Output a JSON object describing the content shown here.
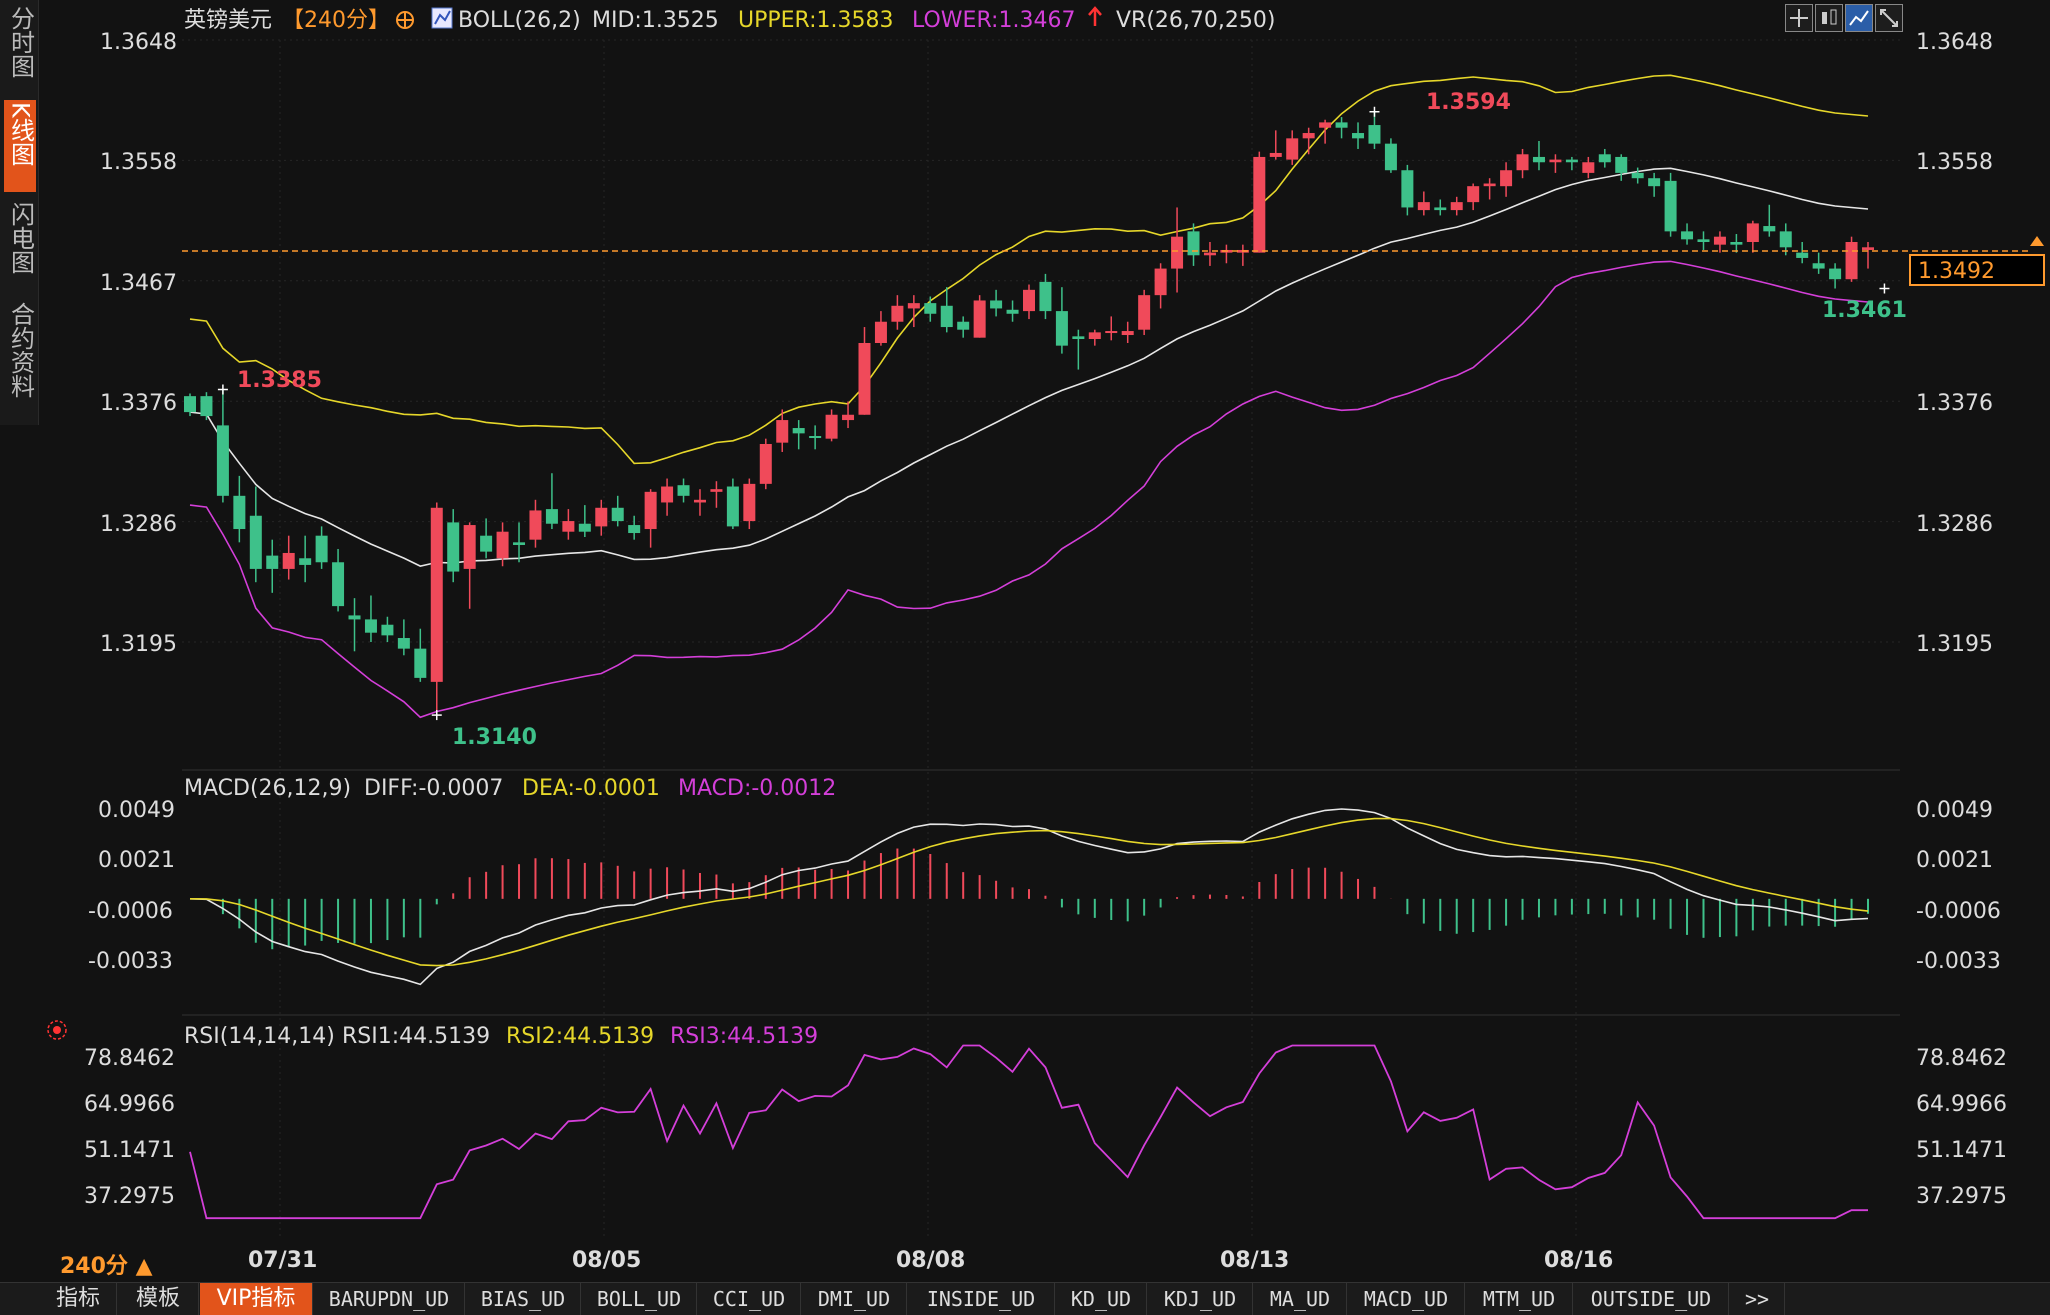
{
  "sidebar": {
    "tabs": [
      {
        "label": "分时图",
        "active": false
      },
      {
        "label": "K线图",
        "active": true
      },
      {
        "label": "闪电图",
        "active": false
      },
      {
        "label": "合约资料",
        "active": false
      }
    ]
  },
  "header": {
    "title": "英镑美元",
    "period_tag": "【240分】",
    "boll_label": "BOLL(26,2)",
    "mid_label": "MID:1.3525",
    "upper_label": "UPPER:1.3583",
    "lower_label": "LOWER:1.3467",
    "vr_label": "VR(26,70,250)"
  },
  "colors": {
    "up": "#f04a5a",
    "down": "#3ec18a",
    "mid": "#e6e6e6",
    "upper": "#e6d72a",
    "lower": "#d43fd9",
    "accent": "#ff9a2e"
  },
  "price_axis": {
    "ticks": [
      "1.3648",
      "1.3558",
      "1.3467",
      "1.3376",
      "1.3286",
      "1.3195"
    ],
    "current_price": "1.3492"
  },
  "annotations": {
    "high_left": "1.3385",
    "low": "1.3140",
    "high_peak": "1.3594",
    "low_right": "1.3461"
  },
  "macd": {
    "label": "MACD(26,12,9)",
    "diff": "DIFF:-0.0007",
    "dea": "DEA:-0.0001",
    "macd": "MACD:-0.0012",
    "ticks": [
      "0.0049",
      "0.0021",
      "-0.0006",
      "-0.0033"
    ]
  },
  "rsi": {
    "label": "RSI(14,14,14)",
    "rsi1": "RSI1:44.5139",
    "rsi2": "RSI2:44.5139",
    "rsi3": "RSI3:44.5139",
    "ticks": [
      "78.8462",
      "64.9966",
      "51.1471",
      "37.2975"
    ]
  },
  "dates": [
    "07/31",
    "08/05",
    "08/08",
    "08/13",
    "08/16"
  ],
  "period_selector": "240分 ▲",
  "bottom_tabs": [
    "指标",
    "模板",
    "VIP指标",
    "BARUPDN_UD",
    "BIAS_UD",
    "BOLL_UD",
    "CCI_UD",
    "DMI_UD",
    "INSIDE_UD",
    "KD_UD",
    "KDJ_UD",
    "MA_UD",
    "MACD_UD",
    "MTM_UD",
    "OUTSIDE_UD",
    ">>"
  ],
  "toolbar_icons": [
    "crosshair-icon",
    "candle-icon",
    "line-chart-icon",
    "fullscreen-icon"
  ],
  "chart_data": {
    "type": "candlestick",
    "title": "英镑美元",
    "ohlc_key": [
      "open",
      "high",
      "low",
      "close"
    ],
    "candles": [
      [
        1.338,
        1.3382,
        1.3365,
        1.3368
      ],
      [
        1.338,
        1.3383,
        1.3362,
        1.3365
      ],
      [
        1.3358,
        1.3385,
        1.33,
        1.3305
      ],
      [
        1.3305,
        1.332,
        1.327,
        1.328
      ],
      [
        1.329,
        1.3312,
        1.324,
        1.325
      ],
      [
        1.326,
        1.3272,
        1.3232,
        1.325
      ],
      [
        1.325,
        1.3275,
        1.3242,
        1.3262
      ],
      [
        1.3258,
        1.3275,
        1.324,
        1.3253
      ],
      [
        1.3275,
        1.3282,
        1.325,
        1.3255
      ],
      [
        1.3255,
        1.3265,
        1.3218,
        1.3222
      ],
      [
        1.3215,
        1.3228,
        1.3188,
        1.3212
      ],
      [
        1.3212,
        1.323,
        1.3195,
        1.3202
      ],
      [
        1.3208,
        1.3214,
        1.3195,
        1.32
      ],
      [
        1.3198,
        1.3212,
        1.3185,
        1.319
      ],
      [
        1.319,
        1.3205,
        1.3165,
        1.3168
      ],
      [
        1.3165,
        1.33,
        1.314,
        1.3296
      ],
      [
        1.3285,
        1.3295,
        1.324,
        1.3248
      ],
      [
        1.325,
        1.3285,
        1.322,
        1.3283
      ],
      [
        1.3275,
        1.3288,
        1.3258,
        1.3263
      ],
      [
        1.3258,
        1.3285,
        1.3252,
        1.3278
      ],
      [
        1.327,
        1.3285,
        1.3255,
        1.3268
      ],
      [
        1.3272,
        1.3302,
        1.3266,
        1.3294
      ],
      [
        1.3295,
        1.3322,
        1.328,
        1.3284
      ],
      [
        1.3278,
        1.3295,
        1.3272,
        1.3286
      ],
      [
        1.3284,
        1.3298,
        1.3274,
        1.3278
      ],
      [
        1.3282,
        1.3302,
        1.3275,
        1.3296
      ],
      [
        1.3296,
        1.3305,
        1.3282,
        1.3286
      ],
      [
        1.3283,
        1.329,
        1.3272,
        1.3277
      ],
      [
        1.328,
        1.331,
        1.3266,
        1.3308
      ],
      [
        1.33,
        1.3318,
        1.329,
        1.3312
      ],
      [
        1.3313,
        1.3318,
        1.33,
        1.3305
      ],
      [
        1.33,
        1.331,
        1.329,
        1.3302
      ],
      [
        1.3308,
        1.3316,
        1.3296,
        1.331
      ],
      [
        1.3312,
        1.3318,
        1.328,
        1.3282
      ],
      [
        1.3286,
        1.3318,
        1.328,
        1.3314
      ],
      [
        1.3314,
        1.3348,
        1.331,
        1.3344
      ],
      [
        1.3345,
        1.337,
        1.3338,
        1.3362
      ],
      [
        1.3356,
        1.3362,
        1.334,
        1.3352
      ],
      [
        1.335,
        1.3358,
        1.334,
        1.3349
      ],
      [
        1.3348,
        1.337,
        1.3346,
        1.3366
      ],
      [
        1.3362,
        1.3376,
        1.3356,
        1.3366
      ],
      [
        1.3366,
        1.3432,
        1.3366,
        1.342
      ],
      [
        1.342,
        1.3444,
        1.3418,
        1.3436
      ],
      [
        1.3436,
        1.3456,
        1.343,
        1.3448
      ],
      [
        1.3446,
        1.3456,
        1.3432,
        1.345
      ],
      [
        1.345,
        1.3455,
        1.3436,
        1.3442
      ],
      [
        1.3448,
        1.3462,
        1.3428,
        1.3432
      ],
      [
        1.3436,
        1.344,
        1.3424,
        1.343
      ],
      [
        1.3424,
        1.3456,
        1.3424,
        1.3452
      ],
      [
        1.3452,
        1.346,
        1.344,
        1.3446
      ],
      [
        1.3445,
        1.3452,
        1.3436,
        1.3442
      ],
      [
        1.3444,
        1.3464,
        1.3438,
        1.346
      ],
      [
        1.3466,
        1.3472,
        1.3438,
        1.3444
      ],
      [
        1.3444,
        1.3462,
        1.3412,
        1.3418
      ],
      [
        1.3425,
        1.343,
        1.34,
        1.3423
      ],
      [
        1.3423,
        1.343,
        1.3418,
        1.3428
      ],
      [
        1.3428,
        1.344,
        1.3422,
        1.3429
      ],
      [
        1.3426,
        1.3436,
        1.342,
        1.3429
      ],
      [
        1.343,
        1.346,
        1.3426,
        1.3456
      ],
      [
        1.3456,
        1.348,
        1.3446,
        1.3476
      ],
      [
        1.3476,
        1.3522,
        1.3458,
        1.35
      ],
      [
        1.3504,
        1.351,
        1.3478,
        1.3486
      ],
      [
        1.3486,
        1.3496,
        1.3478,
        1.3488
      ],
      [
        1.3488,
        1.3494,
        1.348,
        1.349
      ],
      [
        1.3488,
        1.3494,
        1.3478,
        1.349
      ],
      [
        1.3488,
        1.3564,
        1.3488,
        1.356
      ],
      [
        1.356,
        1.358,
        1.3558,
        1.3563
      ],
      [
        1.3558,
        1.358,
        1.3554,
        1.3574
      ],
      [
        1.3574,
        1.3582,
        1.3562,
        1.3578
      ],
      [
        1.3582,
        1.3588,
        1.357,
        1.3586
      ],
      [
        1.3586,
        1.359,
        1.3574,
        1.3582
      ],
      [
        1.3578,
        1.3586,
        1.3566,
        1.3574
      ],
      [
        1.3584,
        1.3594,
        1.3566,
        1.357
      ],
      [
        1.357,
        1.3574,
        1.3548,
        1.355
      ],
      [
        1.355,
        1.3554,
        1.3516,
        1.3522
      ],
      [
        1.352,
        1.3534,
        1.3516,
        1.3526
      ],
      [
        1.3522,
        1.3528,
        1.3516,
        1.352
      ],
      [
        1.352,
        1.353,
        1.3516,
        1.3526
      ],
      [
        1.3526,
        1.354,
        1.352,
        1.3538
      ],
      [
        1.3538,
        1.3544,
        1.3528,
        1.354
      ],
      [
        1.3538,
        1.3556,
        1.353,
        1.355
      ],
      [
        1.355,
        1.3566,
        1.3544,
        1.3562
      ],
      [
        1.356,
        1.3572,
        1.355,
        1.3556
      ],
      [
        1.3556,
        1.3562,
        1.3548,
        1.3558
      ],
      [
        1.3558,
        1.356,
        1.355,
        1.3556
      ],
      [
        1.3548,
        1.356,
        1.3544,
        1.3556
      ],
      [
        1.3562,
        1.3566,
        1.3552,
        1.3556
      ],
      [
        1.356,
        1.3562,
        1.3542,
        1.3548
      ],
      [
        1.3548,
        1.3552,
        1.354,
        1.3544
      ],
      [
        1.3544,
        1.3548,
        1.353,
        1.3538
      ],
      [
        1.3542,
        1.3548,
        1.35,
        1.3504
      ],
      [
        1.3504,
        1.351,
        1.3494,
        1.3498
      ],
      [
        1.3498,
        1.3504,
        1.349,
        1.3496
      ],
      [
        1.3494,
        1.3504,
        1.3488,
        1.35
      ],
      [
        1.3496,
        1.3502,
        1.3488,
        1.3494
      ],
      [
        1.3496,
        1.3512,
        1.3488,
        1.351
      ],
      [
        1.3508,
        1.3524,
        1.35,
        1.3504
      ],
      [
        1.3504,
        1.351,
        1.3486,
        1.3492
      ],
      [
        1.3488,
        1.3496,
        1.348,
        1.3484
      ],
      [
        1.348,
        1.3488,
        1.3472,
        1.3476
      ],
      [
        1.3476,
        1.348,
        1.3461,
        1.3468
      ],
      [
        1.3468,
        1.35,
        1.3466,
        1.3496
      ],
      [
        1.349,
        1.3496,
        1.3476,
        1.3492
      ]
    ]
  }
}
